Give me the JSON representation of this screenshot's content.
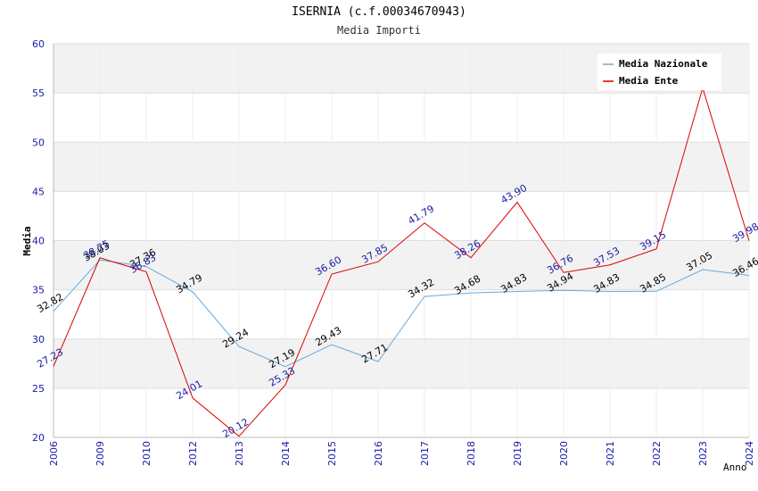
{
  "chart_data": {
    "type": "line",
    "title": "ISERNIA (c.f.00034670943)",
    "subtitle": "Media Importi",
    "xlabel": "Anno",
    "ylabel": "Media",
    "ylim": [
      20,
      60
    ],
    "yticks": [
      "20",
      "25",
      "30",
      "35",
      "40",
      "45",
      "50",
      "55",
      "60"
    ],
    "categories": [
      "2006",
      "2009",
      "2010",
      "2012",
      "2013",
      "2014",
      "2015",
      "2016",
      "2017",
      "2018",
      "2019",
      "2020",
      "2021",
      "2022",
      "2023",
      "2024"
    ],
    "legend_position": "top-right",
    "series": [
      {
        "name": "Media Nazionale",
        "color": "#66aadd",
        "label_color": "#000000",
        "values": [
          32.82,
          38.03,
          37.36,
          34.79,
          29.24,
          27.19,
          29.43,
          27.71,
          34.32,
          34.68,
          34.83,
          34.94,
          34.83,
          34.85,
          37.05,
          36.46
        ],
        "labels": [
          "32.82",
          "38.03",
          "37.36",
          "34.79",
          "29.24",
          "27.19",
          "29.43",
          "27.71",
          "34.32",
          "34.68",
          "34.83",
          "34.94",
          "34.83",
          "34.85",
          "37.05",
          "36.46"
        ]
      },
      {
        "name": "Media Ente",
        "color": "#dd0000",
        "label_color": "#1a1aa6",
        "values": [
          27.23,
          38.25,
          36.83,
          24.01,
          20.12,
          25.33,
          36.6,
          37.85,
          41.79,
          38.26,
          43.9,
          36.76,
          37.53,
          39.15,
          55.5,
          39.98
        ],
        "labels": [
          "27.23",
          "38.25",
          "36.83",
          "24.01",
          "20.12",
          "25.33",
          "36.60",
          "37.85",
          "41.79",
          "38.26",
          "43.90",
          "36.76",
          "37.53",
          "39.15",
          "",
          "39.98"
        ]
      }
    ]
  }
}
